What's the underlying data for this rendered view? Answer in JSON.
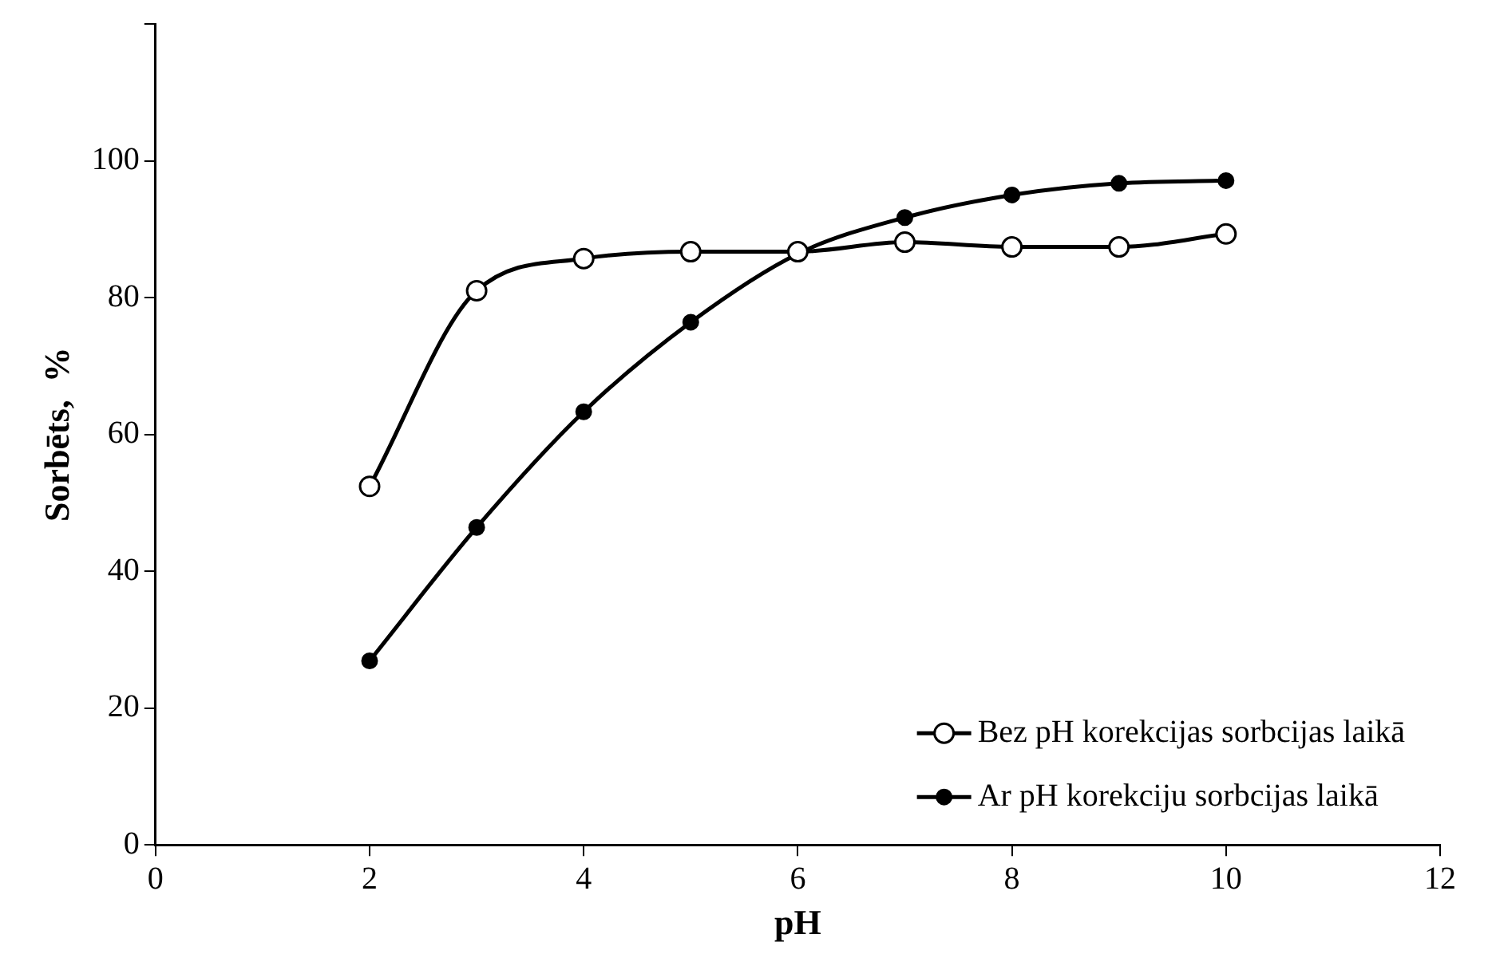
{
  "chart_data": {
    "type": "line",
    "xlabel": "pH",
    "ylabel": "Sorbēts,  %",
    "x": [
      2,
      3,
      4,
      5,
      6,
      7,
      8,
      9,
      10
    ],
    "xlim": [
      0,
      12
    ],
    "xticks": [
      0,
      2,
      4,
      6,
      8,
      10,
      12
    ],
    "ylim": [
      0,
      120
    ],
    "yticks": [
      0,
      20,
      40,
      60,
      80,
      100,
      {
        "value": 120,
        "label": null
      }
    ],
    "grid": false,
    "legend": "bottom right",
    "series": [
      {
        "name": "Bez pH korekcijas sorbcijas laikā",
        "color": "#000000",
        "marker": "circle",
        "values": [
          52.4,
          81,
          85.7,
          86.7,
          86.7,
          88.1,
          87.4,
          87.4,
          89.3
        ]
      },
      {
        "name": "Ar pH korekciju sorbcijas laikā",
        "color": "#000000",
        "marker": "circle",
        "values": [
          26.9,
          46.4,
          63.3,
          76.4,
          86.4,
          91.7,
          95,
          96.7,
          97.1
        ]
      }
    ]
  }
}
